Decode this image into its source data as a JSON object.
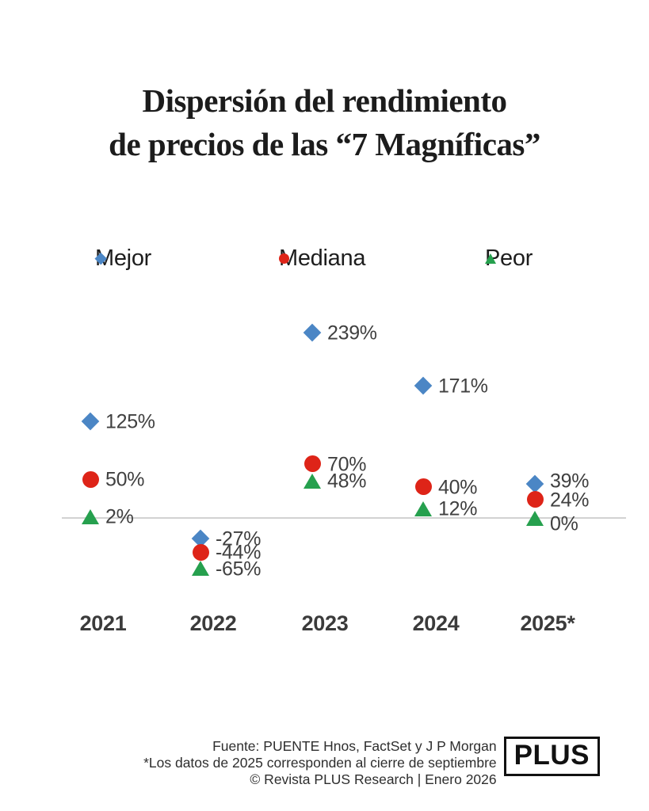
{
  "title": {
    "line1": "Dispersión del rendimiento",
    "line2": "de precios de las “7 Magníficas”"
  },
  "legend": [
    {
      "label": "Mejor",
      "marker": "diamond",
      "color": "#4B86C5"
    },
    {
      "label": "Mediana",
      "marker": "circle",
      "color": "#DE2418"
    },
    {
      "label": "Peor",
      "marker": "triangle",
      "color": "#26A04E"
    }
  ],
  "chart_data": {
    "type": "scatter",
    "categories": [
      "2021",
      "2022",
      "2023",
      "2024",
      "2025*"
    ],
    "series": [
      {
        "name": "Mejor",
        "marker": "diamond",
        "color": "#4B86C5",
        "values": [
          125,
          -27,
          239,
          171,
          39
        ]
      },
      {
        "name": "Mediana",
        "marker": "circle",
        "color": "#DE2418",
        "values": [
          50,
          -44,
          70,
          40,
          24
        ]
      },
      {
        "name": "Peor",
        "marker": "triangle",
        "color": "#26A04E",
        "values": [
          2,
          -65,
          48,
          12,
          0
        ]
      }
    ],
    "value_suffix": "%",
    "ylim": [
      -80,
      260
    ],
    "baseline_value": 0,
    "grid": "baseline-only",
    "legend_position": "top",
    "label_color": "#404040",
    "baseline_color": "#d2d2d2"
  },
  "footer": {
    "line1": "Fuente: PUENTE Hnos, FactSet y J P Morgan",
    "line2": "*Los datos de 2025 corresponden al cierre de septiembre",
    "line3": "© Revista PLUS Research | Enero 2026"
  },
  "logo": {
    "text": "PLUS"
  }
}
